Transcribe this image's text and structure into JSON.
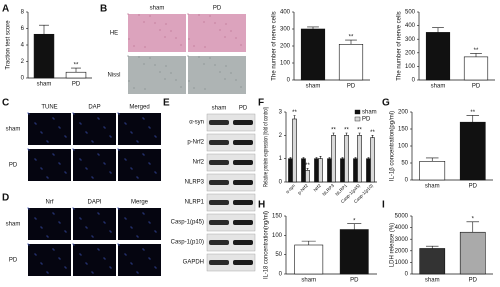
{
  "panel_labels": [
    "A",
    "B",
    "C",
    "D",
    "E",
    "F",
    "G",
    "H",
    "I"
  ],
  "B_images": {
    "columns": [
      "sham",
      "PD"
    ],
    "rows": [
      "HE",
      "Nissl"
    ]
  },
  "C_images": {
    "columns": [
      "TUNE",
      "DAP",
      "Merged"
    ],
    "rows": [
      "sham",
      "PD"
    ]
  },
  "D_images": {
    "columns": [
      "Nrf",
      "DAPI",
      "Merge"
    ],
    "rows": [
      "sham",
      "PD"
    ]
  },
  "E_blot": {
    "columns": [
      "sham",
      "PD"
    ],
    "rows": [
      "α-syn",
      "p-Nrf2",
      "Nrf2",
      "NLRP3",
      "NLRP1",
      "Casp-1(p45)",
      "Casp-1(p10)",
      "GAPDH"
    ]
  },
  "chart_data": [
    {
      "type": "bar",
      "y_label": "Traction test score",
      "categories": [
        "sham",
        "PD"
      ],
      "values": [
        5.3,
        0.7
      ],
      "errors": [
        1.1,
        0.5
      ],
      "colors": [
        "#111111",
        "#ffffff"
      ],
      "ylim": [
        0,
        8
      ],
      "yticks": [
        0,
        2,
        4,
        6,
        8
      ],
      "annotations": [
        {
          "category": "PD",
          "text": "**"
        }
      ]
    },
    {
      "type": "bar",
      "y_label": "The number of nerve cells",
      "categories": [
        "sham",
        "PD"
      ],
      "values": [
        300,
        210
      ],
      "errors": [
        12,
        25
      ],
      "colors": [
        "#111111",
        "#ffffff"
      ],
      "ylim": [
        0,
        400
      ],
      "yticks": [
        0,
        100,
        200,
        300,
        400
      ],
      "annotations": [
        {
          "category": "PD",
          "text": "**"
        }
      ]
    },
    {
      "type": "bar",
      "y_label": "The number of nerve cells",
      "categories": [
        "sham",
        "PD"
      ],
      "values": [
        350,
        170
      ],
      "errors": [
        35,
        25
      ],
      "colors": [
        "#111111",
        "#ffffff"
      ],
      "ylim": [
        0,
        500
      ],
      "yticks": [
        0,
        100,
        200,
        300,
        400,
        500
      ],
      "annotations": [
        {
          "category": "PD",
          "text": "**"
        }
      ]
    },
    {
      "type": "bar",
      "y_label": "Relative protein expression (fold of control)",
      "categories": [
        "α-syn",
        "p-Nrf2",
        "Nrf2",
        "NLRP3",
        "NLRP1",
        "Casp-1(p45)",
        "Casp-1(p10)"
      ],
      "series": [
        {
          "name": "sham",
          "color": "#111111",
          "values": [
            1,
            1,
            1,
            1,
            1,
            1,
            1
          ],
          "errors": [
            0.05,
            0.05,
            0.05,
            0.05,
            0.05,
            0.05,
            0.05
          ]
        },
        {
          "name": "PD",
          "color": "#d9d9d9",
          "values": [
            2.7,
            0.5,
            1.0,
            2.0,
            2.0,
            2.0,
            1.9
          ],
          "errors": [
            0.15,
            0.08,
            0.1,
            0.1,
            0.1,
            0.1,
            0.1
          ]
        }
      ],
      "ylim": [
        0,
        3
      ],
      "yticks": [
        0,
        1,
        2,
        3
      ],
      "legend": "top-right",
      "annotations": [
        {
          "category": "α-syn",
          "series": "PD",
          "text": "**"
        },
        {
          "category": "p-Nrf2",
          "series": "PD",
          "text": "**"
        },
        {
          "category": "NLRP3",
          "series": "PD",
          "text": "**"
        },
        {
          "category": "NLRP1",
          "series": "PD",
          "text": "**"
        },
        {
          "category": "Casp-1(p45)",
          "series": "PD",
          "text": "**"
        },
        {
          "category": "Casp-1(p10)",
          "series": "PD",
          "text": "**"
        }
      ]
    },
    {
      "type": "bar",
      "y_label": "IL-1β concentration(pg/ml)",
      "categories": [
        "sham",
        "PD"
      ],
      "values": [
        55,
        170
      ],
      "errors": [
        10,
        20
      ],
      "colors": [
        "#ffffff",
        "#111111"
      ],
      "ylim": [
        0,
        200
      ],
      "yticks": [
        0,
        50,
        100,
        150,
        200
      ],
      "annotations": [
        {
          "category": "PD",
          "text": "**"
        }
      ]
    },
    {
      "type": "bar",
      "y_label": "IL-18 concentration(ng/ml)",
      "categories": [
        "sham",
        "PD"
      ],
      "values": [
        75,
        115
      ],
      "errors": [
        10,
        15
      ],
      "colors": [
        "#ffffff",
        "#111111"
      ],
      "ylim": [
        0,
        150
      ],
      "yticks": [
        0,
        50,
        100,
        150
      ],
      "annotations": [
        {
          "category": "PD",
          "text": "*"
        }
      ]
    },
    {
      "type": "bar",
      "y_label": "LDH release (%)",
      "categories": [
        "sham",
        "PD"
      ],
      "values": [
        2200,
        3600
      ],
      "errors": [
        200,
        900
      ],
      "colors": [
        "#333333",
        "#aaaaaa"
      ],
      "ylim": [
        0,
        5000
      ],
      "yticks": [
        0,
        1000,
        2000,
        3000,
        4000,
        5000
      ],
      "annotations": [
        {
          "category": "PD",
          "text": "*"
        }
      ]
    }
  ]
}
